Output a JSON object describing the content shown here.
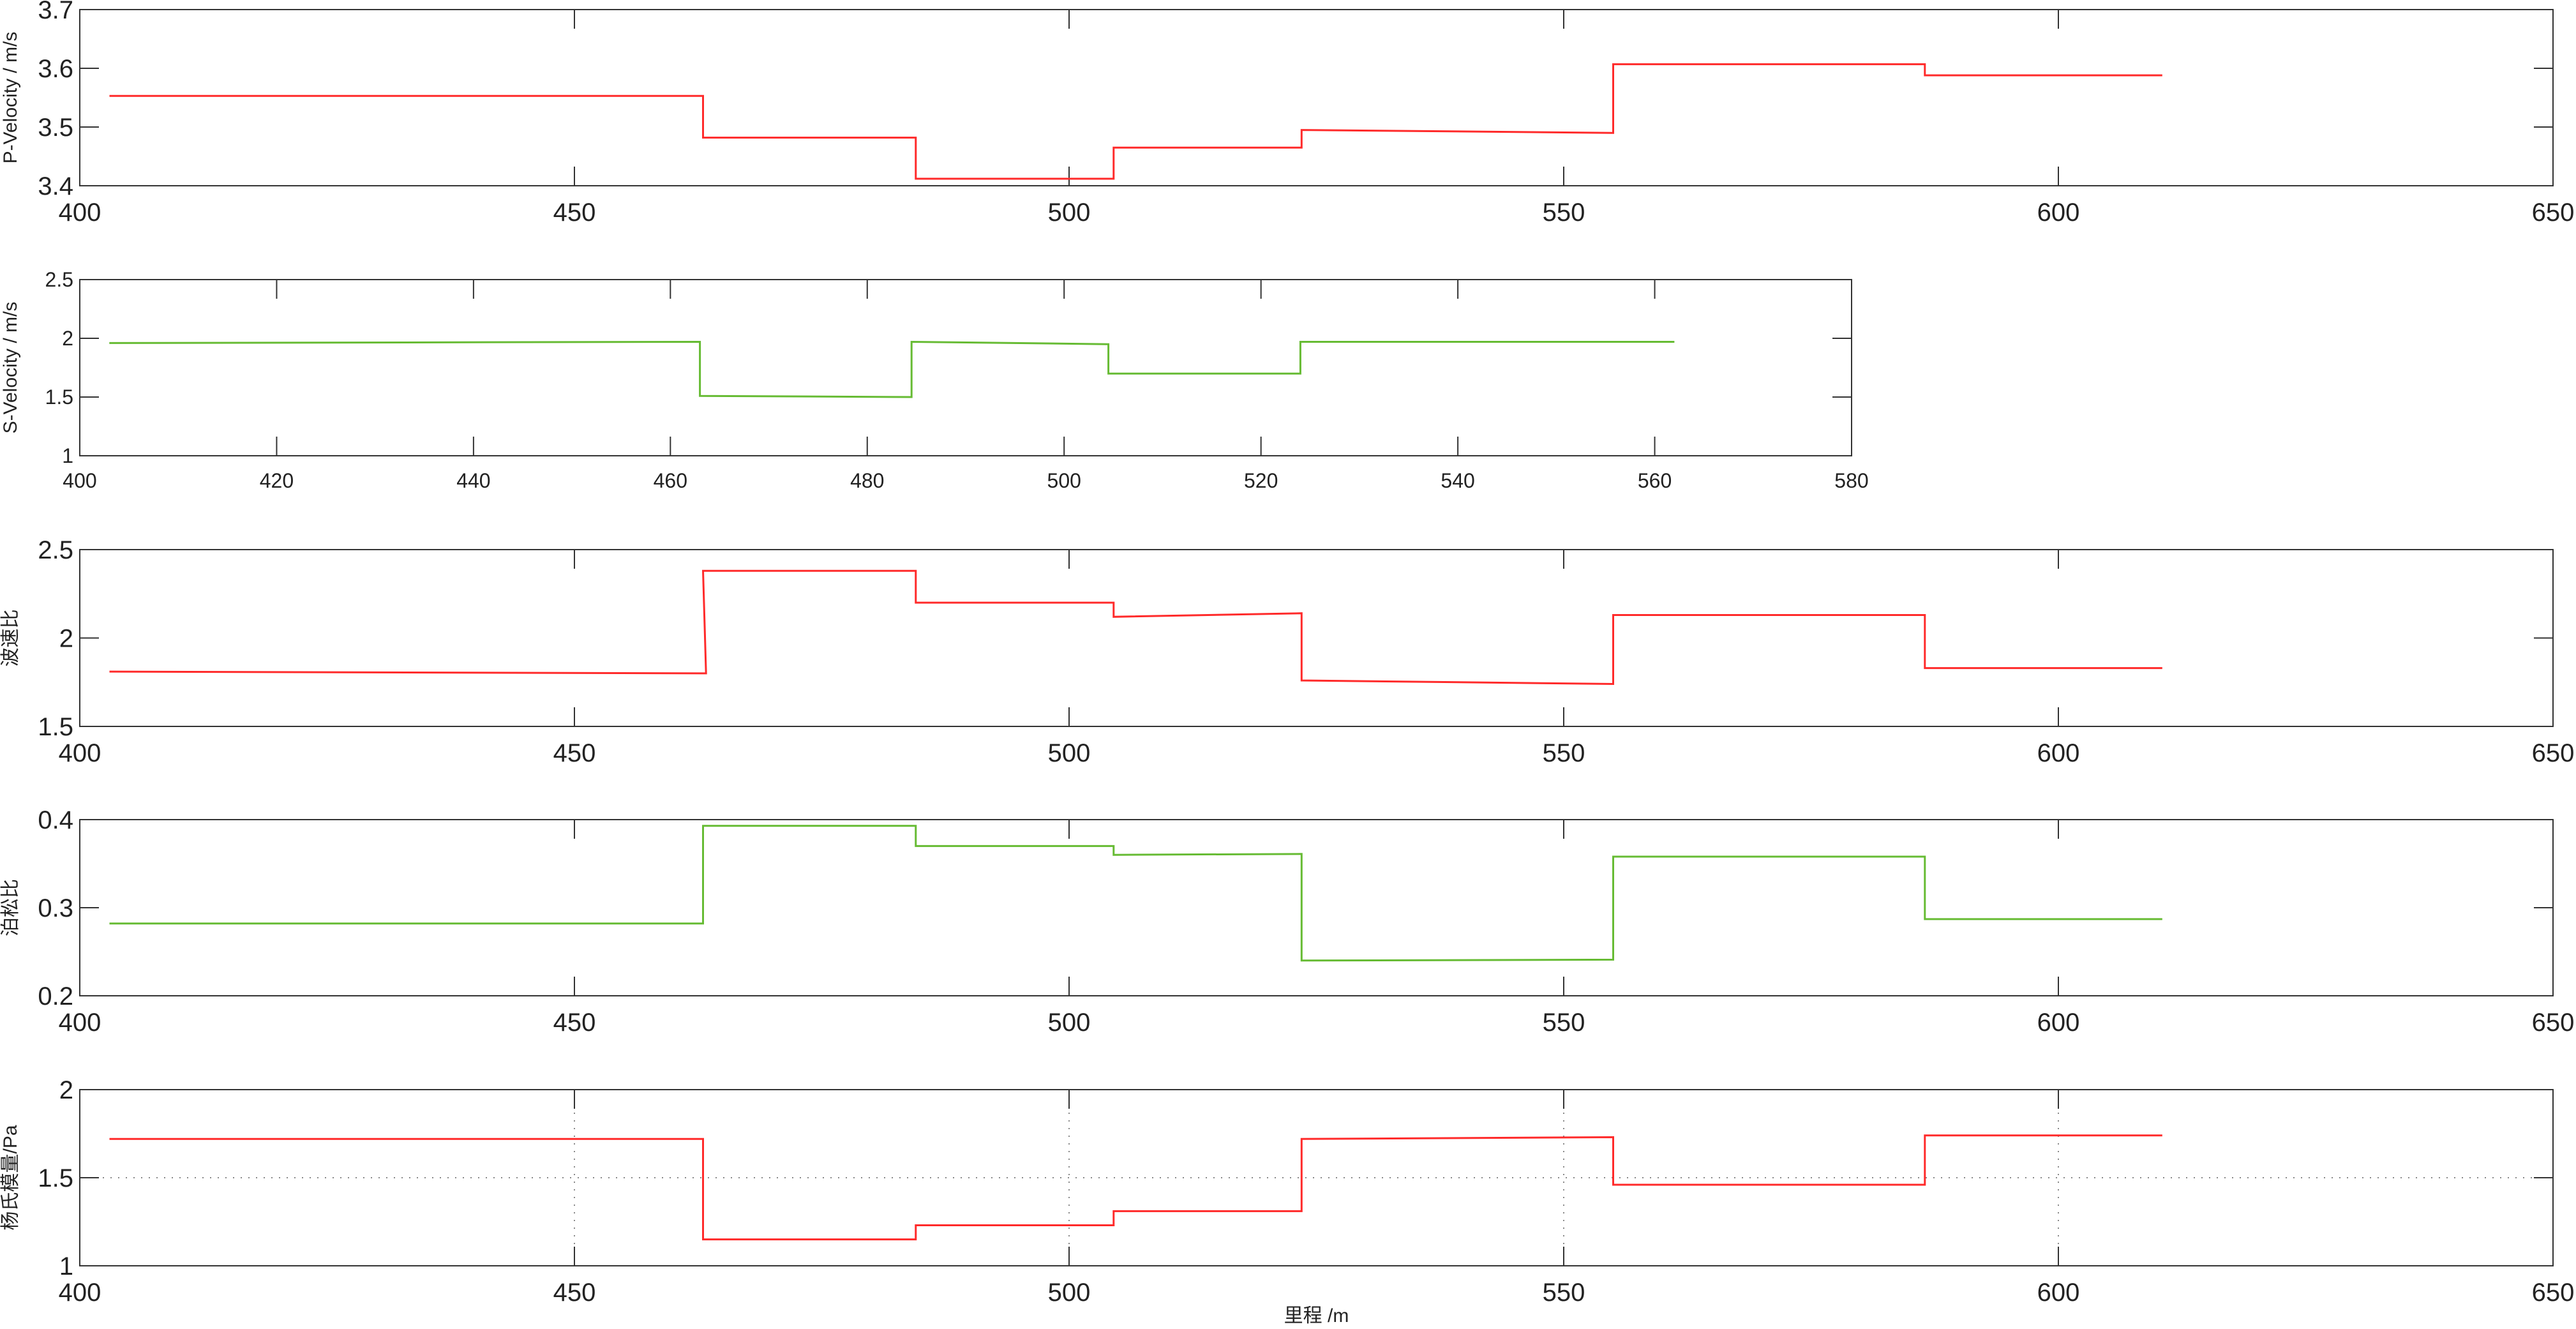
{
  "chart_data": [
    {
      "type": "line",
      "ylabel": "P-Velocity / m/s",
      "xlim": [
        400,
        650
      ],
      "ylim": [
        3.4,
        3.7
      ],
      "xticks": [
        400,
        450,
        500,
        550,
        600,
        650
      ],
      "yticks": [
        3.4,
        3.5,
        3.6,
        3.7
      ],
      "grid": false,
      "series": [
        {
          "color": "#ff2a2a",
          "x": [
            403,
            463,
            463,
            484.5,
            484.5,
            504.5,
            504.5,
            523.5,
            523.5,
            555,
            555,
            586.5,
            586.5,
            610.5
          ],
          "y": [
            3.553,
            3.553,
            3.482,
            3.482,
            3.412,
            3.412,
            3.465,
            3.465,
            3.495,
            3.49,
            3.607,
            3.607,
            3.588,
            3.588
          ]
        }
      ]
    },
    {
      "type": "line",
      "ylabel": "S-Velocity / m/s",
      "xlim": [
        400,
        580
      ],
      "ylim": [
        1,
        2.5
      ],
      "xticks": [
        400,
        420,
        440,
        460,
        480,
        500,
        520,
        540,
        560,
        580
      ],
      "yticks": [
        1,
        1.5,
        2,
        2.5
      ],
      "grid": false,
      "series": [
        {
          "color": "#66bb33",
          "x": [
            403,
            463,
            463,
            484.5,
            484.5,
            504.5,
            504.5,
            524,
            524,
            562
          ],
          "y": [
            1.96,
            1.97,
            1.51,
            1.5,
            1.97,
            1.95,
            1.7,
            1.7,
            1.97,
            1.97
          ]
        }
      ]
    },
    {
      "type": "line",
      "ylabel": "波速比",
      "xlim": [
        400,
        650
      ],
      "ylim": [
        1.5,
        2.5
      ],
      "xticks": [
        400,
        450,
        500,
        550,
        600,
        650
      ],
      "yticks": [
        1.5,
        2,
        2.5
      ],
      "grid": false,
      "series": [
        {
          "color": "#ff2a2a",
          "x": [
            403,
            463.3,
            463,
            484.5,
            484.5,
            504.5,
            504.5,
            523.5,
            523.5,
            555,
            555,
            586.5,
            586.5,
            610.5
          ],
          "y": [
            1.81,
            1.8,
            2.38,
            2.38,
            2.2,
            2.2,
            2.12,
            2.14,
            1.76,
            1.74,
            2.13,
            2.13,
            1.83,
            1.83
          ]
        }
      ]
    },
    {
      "type": "line",
      "ylabel": "泊松比",
      "xlim": [
        400,
        650
      ],
      "ylim": [
        0.2,
        0.4
      ],
      "xticks": [
        400,
        450,
        500,
        550,
        600,
        650
      ],
      "yticks": [
        0.2,
        0.3,
        0.4
      ],
      "grid": false,
      "series": [
        {
          "color": "#66bb33",
          "x": [
            403,
            463,
            463,
            484.5,
            484.5,
            504.5,
            504.5,
            523.5,
            523.5,
            555,
            555,
            586.5,
            586.5,
            610.5
          ],
          "y": [
            0.282,
            0.282,
            0.393,
            0.393,
            0.37,
            0.37,
            0.36,
            0.361,
            0.24,
            0.241,
            0.358,
            0.358,
            0.287,
            0.287
          ]
        }
      ]
    },
    {
      "type": "line",
      "ylabel": "杨氏模量/Pa",
      "xlabel": "里程  /m",
      "xlim": [
        400,
        650
      ],
      "ylim": [
        1,
        2
      ],
      "xticks": [
        400,
        450,
        500,
        550,
        600,
        650
      ],
      "yticks": [
        1,
        1.5,
        2
      ],
      "grid": true,
      "series": [
        {
          "color": "#ff2a2a",
          "x": [
            403,
            463,
            463,
            484.5,
            484.5,
            504.5,
            504.5,
            523.5,
            523.5,
            555,
            555,
            586.5,
            586.5,
            610.5
          ],
          "y": [
            1.72,
            1.72,
            1.15,
            1.15,
            1.23,
            1.23,
            1.31,
            1.31,
            1.72,
            1.73,
            1.46,
            1.46,
            1.74,
            1.74
          ]
        }
      ]
    }
  ]
}
